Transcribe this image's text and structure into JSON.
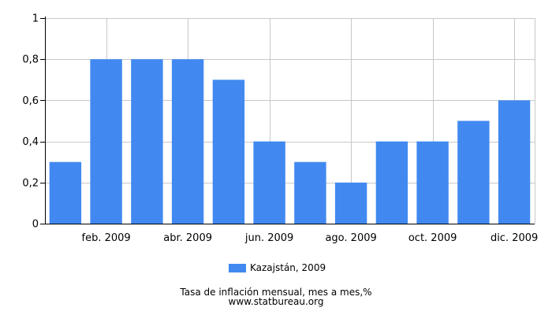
{
  "chart_data": {
    "type": "bar",
    "categories": [
      "ene. 2009",
      "feb. 2009",
      "mar. 2009",
      "abr. 2009",
      "may. 2009",
      "jun. 2009",
      "jul. 2009",
      "ago. 2009",
      "sep. 2009",
      "oct. 2009",
      "nov. 2009",
      "dic. 2009"
    ],
    "x_tick_labels": [
      "",
      "feb. 2009",
      "",
      "abr. 2009",
      "",
      "jun. 2009",
      "",
      "ago. 2009",
      "",
      "oct. 2009",
      "",
      "dic. 2009"
    ],
    "series": [
      {
        "name": "Kazajstán, 2009",
        "values": [
          0.3,
          0.8,
          0.8,
          0.8,
          0.7,
          0.4,
          0.3,
          0.2,
          0.4,
          0.4,
          0.5,
          0.6
        ]
      }
    ],
    "ylim": [
      0,
      1
    ],
    "y_ticks": [
      0,
      0.2,
      0.4,
      0.6,
      0.8,
      1
    ],
    "y_tick_labels": [
      "0",
      "0,2",
      "0,4",
      "0,6",
      "0,8",
      "1"
    ],
    "grid": true,
    "legend_position": "bottom",
    "bar_color": "#4189f0",
    "grid_color": "#c8c8c8",
    "axis_color": "#000000"
  },
  "caption": {
    "title": "Tasa de inflación mensual, mes a mes,%",
    "source": "www.statbureau.org"
  }
}
